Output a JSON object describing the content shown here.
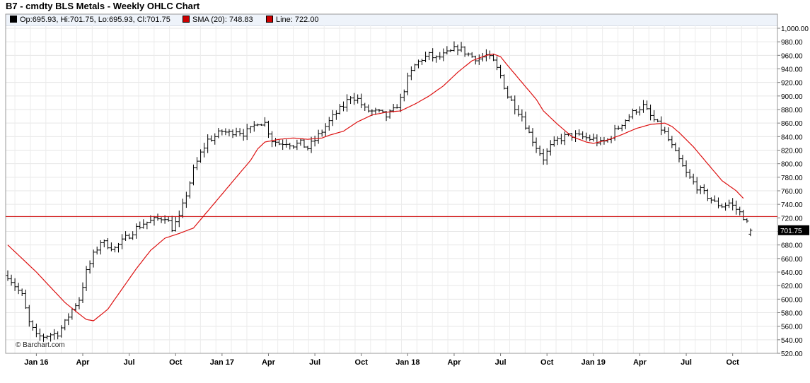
{
  "header": {
    "title": "B7 - cmdty BLS Metals - Weekly OHLC Chart"
  },
  "legend": [
    {
      "label": "Op:695.93, Hi:701.75, Lo:695.93, Cl:701.75",
      "color": "#000000"
    },
    {
      "label": "SMA (20): 748.83",
      "color": "#cc0000"
    },
    {
      "label": "Line: 722.00",
      "color": "#cc0000"
    }
  ],
  "footer": {
    "credit": "© Barchart.com"
  },
  "chart_data": {
    "type": "ohlc",
    "xlabel": "",
    "ylabel": "",
    "ylim": [
      520,
      1000
    ],
    "y_ticks": [
      520,
      540,
      560,
      580,
      600,
      620,
      640,
      660,
      680,
      700,
      720,
      740,
      760,
      780,
      800,
      820,
      840,
      860,
      880,
      900,
      920,
      940,
      960,
      980,
      1000
    ],
    "y_tick_labels": [
      "520.00",
      "540.00",
      "560.00",
      "580.00",
      "600.00",
      "620.00",
      "640.00",
      "660.00",
      "680.00",
      "700.00",
      "720.00",
      "740.00",
      "760.00",
      "780.00",
      "800.00",
      "820.00",
      "840.00",
      "860.00",
      "880.00",
      "900.00",
      "920.00",
      "940.00",
      "960.00",
      "980.00",
      "1,000.00"
    ],
    "x_ticks": [
      {
        "label": "Jan 16",
        "week": 8
      },
      {
        "label": "Apr",
        "week": 21
      },
      {
        "label": "Jul",
        "week": 34
      },
      {
        "label": "Oct",
        "week": 47
      },
      {
        "label": "Jan 17",
        "week": 60
      },
      {
        "label": "Apr",
        "week": 73
      },
      {
        "label": "Jul",
        "week": 86
      },
      {
        "label": "Oct",
        "week": 99
      },
      {
        "label": "Jan 18",
        "week": 112
      },
      {
        "label": "Apr",
        "week": 125
      },
      {
        "label": "Jul",
        "week": 138
      },
      {
        "label": "Oct",
        "week": 151
      },
      {
        "label": "Jan 19",
        "week": 164
      },
      {
        "label": "Apr",
        "week": 177
      },
      {
        "label": "Jul",
        "week": 190
      },
      {
        "label": "Oct",
        "week": 203
      }
    ],
    "xlim": [
      0,
      210
    ],
    "close_keypoints": [
      [
        0,
        635
      ],
      [
        2,
        620
      ],
      [
        4,
        605
      ],
      [
        6,
        565
      ],
      [
        8,
        545
      ],
      [
        10,
        545
      ],
      [
        12,
        548
      ],
      [
        14,
        550
      ],
      [
        16,
        565
      ],
      [
        18,
        585
      ],
      [
        20,
        600
      ],
      [
        22,
        640
      ],
      [
        24,
        665
      ],
      [
        26,
        685
      ],
      [
        28,
        680
      ],
      [
        30,
        675
      ],
      [
        32,
        685
      ],
      [
        34,
        695
      ],
      [
        36,
        705
      ],
      [
        38,
        712
      ],
      [
        40,
        715
      ],
      [
        42,
        718
      ],
      [
        44,
        722
      ],
      [
        46,
        705
      ],
      [
        48,
        720
      ],
      [
        50,
        755
      ],
      [
        52,
        790
      ],
      [
        54,
        815
      ],
      [
        56,
        835
      ],
      [
        58,
        840
      ],
      [
        60,
        848
      ],
      [
        62,
        845
      ],
      [
        64,
        850
      ],
      [
        66,
        845
      ],
      [
        68,
        850
      ],
      [
        70,
        862
      ],
      [
        72,
        860
      ],
      [
        74,
        835
      ],
      [
        76,
        830
      ],
      [
        78,
        832
      ],
      [
        80,
        828
      ],
      [
        82,
        830
      ],
      [
        84,
        823
      ],
      [
        86,
        835
      ],
      [
        88,
        848
      ],
      [
        90,
        862
      ],
      [
        92,
        875
      ],
      [
        94,
        885
      ],
      [
        96,
        900
      ],
      [
        98,
        895
      ],
      [
        100,
        880
      ],
      [
        102,
        877
      ],
      [
        104,
        875
      ],
      [
        106,
        870
      ],
      [
        108,
        878
      ],
      [
        110,
        895
      ],
      [
        112,
        925
      ],
      [
        114,
        945
      ],
      [
        116,
        955
      ],
      [
        118,
        960
      ],
      [
        120,
        955
      ],
      [
        122,
        960
      ],
      [
        124,
        965
      ],
      [
        126,
        972
      ],
      [
        128,
        965
      ],
      [
        130,
        958
      ],
      [
        132,
        955
      ],
      [
        134,
        960
      ],
      [
        136,
        950
      ],
      [
        138,
        930
      ],
      [
        140,
        900
      ],
      [
        142,
        885
      ],
      [
        144,
        870
      ],
      [
        146,
        845
      ],
      [
        148,
        825
      ],
      [
        150,
        808
      ],
      [
        152,
        825
      ],
      [
        154,
        835
      ],
      [
        156,
        840
      ],
      [
        158,
        842
      ],
      [
        160,
        840
      ],
      [
        162,
        838
      ],
      [
        164,
        836
      ],
      [
        166,
        830
      ],
      [
        168,
        835
      ],
      [
        170,
        848
      ],
      [
        172,
        860
      ],
      [
        174,
        870
      ],
      [
        176,
        880
      ],
      [
        178,
        885
      ],
      [
        180,
        870
      ],
      [
        182,
        858
      ],
      [
        184,
        845
      ],
      [
        186,
        825
      ],
      [
        188,
        805
      ],
      [
        190,
        785
      ],
      [
        192,
        772
      ],
      [
        194,
        760
      ],
      [
        196,
        752
      ],
      [
        198,
        742
      ],
      [
        200,
        738
      ],
      [
        202,
        742
      ],
      [
        204,
        733
      ],
      [
        206,
        722
      ],
      [
        208,
        701.75
      ]
    ],
    "sma_keypoints": [
      [
        0,
        680
      ],
      [
        8,
        640
      ],
      [
        16,
        595
      ],
      [
        20,
        578
      ],
      [
        22,
        570
      ],
      [
        24,
        568
      ],
      [
        28,
        585
      ],
      [
        32,
        615
      ],
      [
        36,
        645
      ],
      [
        40,
        672
      ],
      [
        44,
        690
      ],
      [
        48,
        697
      ],
      [
        52,
        705
      ],
      [
        56,
        730
      ],
      [
        60,
        755
      ],
      [
        64,
        780
      ],
      [
        68,
        805
      ],
      [
        70,
        822
      ],
      [
        72,
        832
      ],
      [
        76,
        836
      ],
      [
        80,
        838
      ],
      [
        84,
        836
      ],
      [
        88,
        838
      ],
      [
        90,
        842
      ],
      [
        94,
        848
      ],
      [
        98,
        862
      ],
      [
        102,
        872
      ],
      [
        106,
        876
      ],
      [
        110,
        878
      ],
      [
        114,
        888
      ],
      [
        118,
        900
      ],
      [
        122,
        915
      ],
      [
        126,
        935
      ],
      [
        130,
        952
      ],
      [
        134,
        960
      ],
      [
        136,
        962
      ],
      [
        138,
        958
      ],
      [
        140,
        945
      ],
      [
        144,
        920
      ],
      [
        148,
        895
      ],
      [
        150,
        878
      ],
      [
        154,
        858
      ],
      [
        158,
        840
      ],
      [
        162,
        832
      ],
      [
        164,
        830
      ],
      [
        168,
        835
      ],
      [
        172,
        843
      ],
      [
        176,
        852
      ],
      [
        180,
        858
      ],
      [
        184,
        860
      ],
      [
        186,
        855
      ],
      [
        188,
        846
      ],
      [
        192,
        825
      ],
      [
        196,
        800
      ],
      [
        200,
        775
      ],
      [
        204,
        760
      ],
      [
        206,
        748.83
      ]
    ],
    "hline": {
      "value": 722.0
    },
    "last_price": {
      "value": 701.75,
      "label": "701.75"
    },
    "grid": true
  }
}
